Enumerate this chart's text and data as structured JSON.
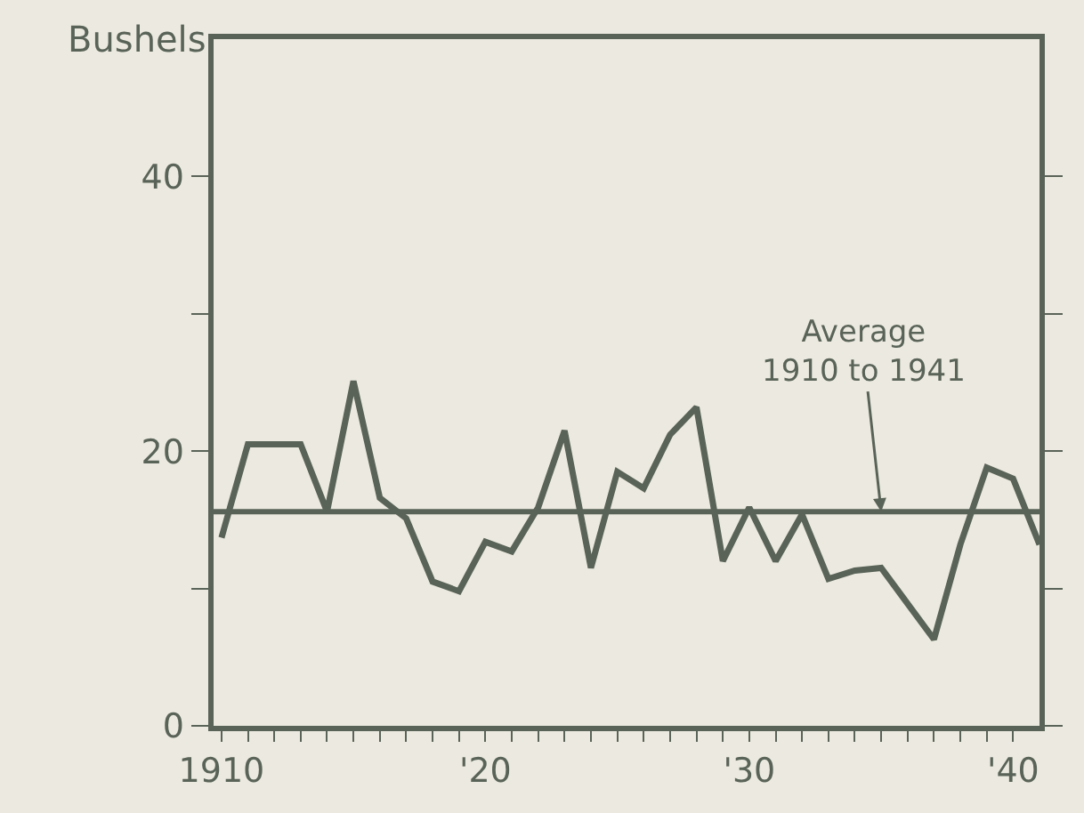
{
  "chart_data": {
    "type": "line",
    "ylabel": "Bushels",
    "x": [
      1910,
      1911,
      1912,
      1913,
      1914,
      1915,
      1916,
      1917,
      1918,
      1919,
      1920,
      1921,
      1922,
      1923,
      1924,
      1925,
      1926,
      1927,
      1928,
      1929,
      1930,
      1931,
      1932,
      1933,
      1934,
      1935,
      1936,
      1937,
      1938,
      1939,
      1940,
      1941
    ],
    "series": [
      {
        "color": "#5a6358",
        "values": [
          13.7,
          20.5,
          20.5,
          20.5,
          15.6,
          25.1,
          16.6,
          15.1,
          10.5,
          9.8,
          13.4,
          12.7,
          15.9,
          21.5,
          11.5,
          18.5,
          17.3,
          21.2,
          23.2,
          12.0,
          15.9,
          12.0,
          15.4,
          10.7,
          11.3,
          11.5,
          8.9,
          6.3,
          13.2,
          18.8,
          18.0,
          13.2
        ]
      }
    ],
    "xlim": [
      1909.7,
      1941
    ],
    "ylim": [
      0,
      50
    ],
    "xticks": [
      {
        "value": 1910,
        "label": "1910"
      },
      {
        "value": 1911,
        "label": null
      },
      {
        "value": 1912,
        "label": null
      },
      {
        "value": 1913,
        "label": null
      },
      {
        "value": 1914,
        "label": null
      },
      {
        "value": 1915,
        "label": null
      },
      {
        "value": 1916,
        "label": null
      },
      {
        "value": 1917,
        "label": null
      },
      {
        "value": 1918,
        "label": null
      },
      {
        "value": 1919,
        "label": null
      },
      {
        "value": 1920,
        "label": "'20"
      },
      {
        "value": 1921,
        "label": null
      },
      {
        "value": 1922,
        "label": null
      },
      {
        "value": 1923,
        "label": null
      },
      {
        "value": 1924,
        "label": null
      },
      {
        "value": 1925,
        "label": null
      },
      {
        "value": 1926,
        "label": null
      },
      {
        "value": 1927,
        "label": null
      },
      {
        "value": 1928,
        "label": null
      },
      {
        "value": 1929,
        "label": null
      },
      {
        "value": 1930,
        "label": "'30"
      },
      {
        "value": 1931,
        "label": null
      },
      {
        "value": 1932,
        "label": null
      },
      {
        "value": 1933,
        "label": null
      },
      {
        "value": 1934,
        "label": null
      },
      {
        "value": 1935,
        "label": null
      },
      {
        "value": 1936,
        "label": null
      },
      {
        "value": 1937,
        "label": null
      },
      {
        "value": 1938,
        "label": null
      },
      {
        "value": 1939,
        "label": null
      },
      {
        "value": 1940,
        "label": "'40"
      }
    ],
    "yticks": [
      0,
      {
        "value": 10,
        "label": null
      },
      20,
      {
        "value": 30,
        "label": null
      },
      40
    ],
    "ref_lines": [
      {
        "axis": "y",
        "value": 15.6,
        "color": "#5a6358"
      }
    ],
    "annotations": [
      {
        "text": "Average\n1910 to 1941",
        "x": 1935,
        "y": 15.6
      }
    ],
    "grid": false,
    "marker": "none",
    "line_style": "solid"
  }
}
